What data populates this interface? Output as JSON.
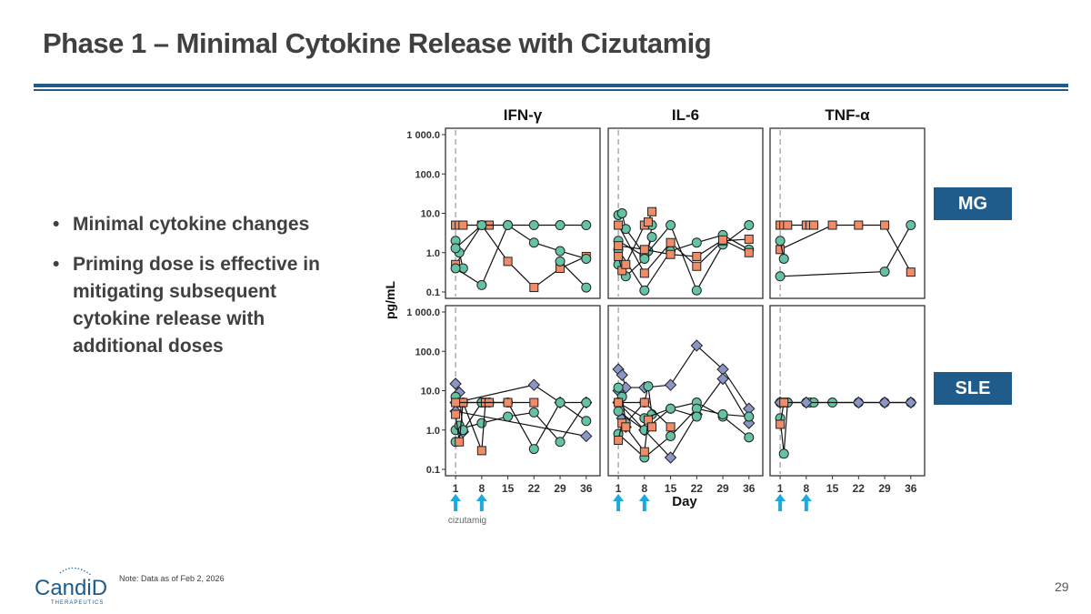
{
  "title": "Phase 1 – Minimal Cytokine Release with Cizutamig",
  "bullets": [
    "Minimal cytokine changes",
    "Priming dose is effective in mitigating subsequent cytokine release with additional doses"
  ],
  "row_tags": [
    "MG",
    "SLE"
  ],
  "note": "Note: Data as of Feb 2, 2026",
  "page_number": "29",
  "logo_text": "CandiD",
  "logo_subtext": "THERAPEUTICS",
  "colors": {
    "accent": "#1f5c8b",
    "arrow": "#1fa8e0",
    "teal": "#66c2a5",
    "orange": "#f08c68",
    "purple": "#8a95c8"
  },
  "chart_data": {
    "type": "line",
    "ylabel": "pg/mL",
    "xlabel": "Day",
    "y_scale": "log10",
    "ylim": [
      0.1,
      1000
    ],
    "y_tick_values": [
      0.1,
      1,
      10,
      100,
      1000
    ],
    "y_tick_labels": [
      "0.1",
      "1.0",
      "10.0",
      "100.0",
      "1 000.0"
    ],
    "x_ticks": [
      1,
      8,
      15,
      22,
      29,
      36
    ],
    "xlim": [
      0,
      38
    ],
    "panel_titles": [
      "IFN-γ",
      "IL-6",
      "TNF-α"
    ],
    "dose_days": [
      1,
      8
    ],
    "dose_label": "cizutamig",
    "panels": [
      {
        "row": "MG",
        "cytokine": "IFN-γ",
        "series": [
          {
            "marker": "square",
            "color": "orange",
            "x": [
              1,
              2,
              3,
              8,
              9,
              10
            ],
            "y": [
              5,
              5,
              5,
              5,
              5,
              5
            ]
          },
          {
            "marker": "square",
            "color": "orange",
            "x": [
              1,
              8,
              15,
              22,
              29,
              36
            ],
            "y": [
              0.5,
              5,
              0.6,
              0.13,
              0.4,
              0.8
            ]
          },
          {
            "marker": "circle",
            "color": "teal",
            "x": [
              1,
              2,
              3
            ],
            "y": [
              2,
              1,
              0.4
            ]
          },
          {
            "marker": "circle",
            "color": "teal",
            "x": [
              1,
              8,
              15,
              22,
              29,
              36
            ],
            "y": [
              1.3,
              5,
              5,
              5,
              5,
              5
            ]
          },
          {
            "marker": "circle",
            "color": "teal",
            "x": [
              1,
              8,
              15,
              22,
              29,
              36
            ],
            "y": [
              0.4,
              0.15,
              5,
              1.8,
              1.1,
              0.7
            ]
          },
          {
            "marker": "circle",
            "color": "teal",
            "x": [
              29,
              36
            ],
            "y": [
              0.6,
              0.13
            ]
          }
        ]
      },
      {
        "row": "MG",
        "cytokine": "IL-6",
        "series": [
          {
            "marker": "circle",
            "color": "teal",
            "x": [
              1,
              2,
              3,
              8,
              9,
              10
            ],
            "y": [
              9,
              10,
              4,
              0.9,
              1.1,
              5
            ]
          },
          {
            "marker": "circle",
            "color": "teal",
            "x": [
              1,
              8,
              15,
              22,
              29,
              36
            ],
            "y": [
              2,
              0.8,
              5,
              0.11,
              1.6,
              5
            ]
          },
          {
            "marker": "circle",
            "color": "teal",
            "x": [
              1,
              8,
              15,
              22,
              29,
              36
            ],
            "y": [
              1.2,
              0.11,
              1.1,
              1.8,
              2.8,
              1.2
            ]
          },
          {
            "marker": "circle",
            "color": "teal",
            "x": [
              1,
              3,
              8,
              10
            ],
            "y": [
              0.5,
              0.25,
              0.7,
              2.5
            ]
          },
          {
            "marker": "square",
            "color": "orange",
            "x": [
              1,
              2,
              3,
              8,
              9,
              10
            ],
            "y": [
              0.8,
              0.35,
              0.5,
              5,
              6,
              11
            ]
          },
          {
            "marker": "square",
            "color": "orange",
            "x": [
              1,
              8,
              15,
              22,
              29,
              36
            ],
            "y": [
              5,
              0.3,
              1.8,
              0.45,
              2,
              2.2
            ]
          },
          {
            "marker": "square",
            "color": "orange",
            "x": [
              1,
              8,
              15,
              22,
              29,
              36
            ],
            "y": [
              1.5,
              1.2,
              0.9,
              0.8,
              2.1,
              1
            ]
          }
        ]
      },
      {
        "row": "MG",
        "cytokine": "TNF-α",
        "series": [
          {
            "marker": "square",
            "color": "orange",
            "x": [
              1,
              2,
              3,
              8,
              9,
              10
            ],
            "y": [
              5,
              5,
              5,
              5,
              5,
              5
            ]
          },
          {
            "marker": "square",
            "color": "orange",
            "x": [
              1,
              15,
              22,
              29,
              36
            ],
            "y": [
              1.2,
              5,
              5,
              5,
              0.32
            ]
          },
          {
            "marker": "circle",
            "color": "teal",
            "x": [
              1,
              2
            ],
            "y": [
              2,
              0.7
            ]
          },
          {
            "marker": "circle",
            "color": "teal",
            "x": [
              1,
              29,
              36
            ],
            "y": [
              0.25,
              0.33,
              5
            ]
          }
        ]
      },
      {
        "row": "SLE",
        "cytokine": "IFN-γ",
        "series": [
          {
            "marker": "diamond",
            "color": "purple",
            "x": [
              1,
              2,
              3
            ],
            "y": [
              15,
              9,
              0.9
            ]
          },
          {
            "marker": "diamond",
            "color": "purple",
            "x": [
              1,
              22,
              29,
              36
            ],
            "y": [
              5,
              14,
              5,
              5
            ]
          },
          {
            "marker": "diamond",
            "color": "purple",
            "x": [
              1,
              36
            ],
            "y": [
              3,
              0.7
            ]
          },
          {
            "marker": "circle",
            "color": "teal",
            "x": [
              1,
              2,
              3,
              8,
              9,
              10
            ],
            "y": [
              7,
              5,
              5,
              5,
              5,
              5
            ]
          },
          {
            "marker": "circle",
            "color": "teal",
            "x": [
              1,
              8,
              15,
              22,
              29,
              36
            ],
            "y": [
              0.5,
              5,
              5,
              0.33,
              5,
              1.7
            ]
          },
          {
            "marker": "circle",
            "color": "teal",
            "x": [
              1,
              8,
              15,
              22,
              29,
              36
            ],
            "y": [
              1,
              1.5,
              2.2,
              2.8,
              0.5,
              5
            ]
          },
          {
            "marker": "circle",
            "color": "teal",
            "x": [
              2,
              3
            ],
            "y": [
              1.3,
              1
            ]
          },
          {
            "marker": "square",
            "color": "orange",
            "x": [
              1,
              2,
              3,
              8,
              9,
              10
            ],
            "y": [
              2.5,
              0.5,
              5,
              0.3,
              5,
              5
            ]
          },
          {
            "marker": "square",
            "color": "orange",
            "x": [
              1,
              15,
              22
            ],
            "y": [
              5,
              5,
              5
            ]
          }
        ]
      },
      {
        "row": "SLE",
        "cytokine": "IL-6",
        "series": [
          {
            "marker": "diamond",
            "color": "purple",
            "x": [
              1,
              2,
              3,
              8,
              15,
              22,
              29,
              36
            ],
            "y": [
              35,
              25,
              12,
              12,
              14,
              140,
              35,
              3.5
            ]
          },
          {
            "marker": "diamond",
            "color": "purple",
            "x": [
              1,
              8,
              15,
              22,
              29,
              36
            ],
            "y": [
              5,
              1,
              0.2,
              2.5,
              20,
              1.5
            ]
          },
          {
            "marker": "diamond",
            "color": "purple",
            "x": [
              1,
              2,
              3
            ],
            "y": [
              10,
              2,
              1.2
            ]
          },
          {
            "marker": "circle",
            "color": "teal",
            "x": [
              1,
              2,
              3,
              8,
              9,
              10
            ],
            "y": [
              12,
              7,
              1.5,
              5,
              13,
              2.5
            ]
          },
          {
            "marker": "circle",
            "color": "teal",
            "x": [
              1,
              8,
              15,
              22,
              29,
              36
            ],
            "y": [
              3,
              1,
              3.5,
              5,
              2.2,
              0.65
            ]
          },
          {
            "marker": "circle",
            "color": "teal",
            "x": [
              1,
              8,
              15,
              22,
              29,
              36
            ],
            "y": [
              0.8,
              0.2,
              0.7,
              3.5,
              2.5,
              2.2
            ]
          },
          {
            "marker": "circle",
            "color": "teal",
            "x": [
              1,
              8,
              15,
              22
            ],
            "y": [
              5,
              2,
              3.5,
              2.2
            ]
          },
          {
            "marker": "square",
            "color": "orange",
            "x": [
              1,
              2,
              3,
              8,
              9,
              10
            ],
            "y": [
              0.55,
              1.5,
              1.2,
              0.28,
              1.8,
              1.2
            ]
          },
          {
            "marker": "square",
            "color": "orange",
            "x": [
              1,
              8,
              15
            ],
            "y": [
              5,
              5,
              1.2
            ]
          }
        ]
      },
      {
        "row": "SLE",
        "cytokine": "TNF-α",
        "series": [
          {
            "marker": "circle",
            "color": "teal",
            "x": [
              1,
              2,
              3,
              8,
              9,
              10,
              15,
              22,
              29,
              36
            ],
            "y": [
              5,
              5,
              5,
              5,
              5,
              5,
              5,
              5,
              5,
              5
            ]
          },
          {
            "marker": "circle",
            "color": "teal",
            "x": [
              1,
              2,
              3
            ],
            "y": [
              2,
              0.25,
              5
            ]
          },
          {
            "marker": "diamond",
            "color": "purple",
            "x": [
              1,
              8,
              22,
              29,
              36
            ],
            "y": [
              5,
              5,
              5,
              5,
              5
            ]
          },
          {
            "marker": "square",
            "color": "orange",
            "x": [
              1,
              2
            ],
            "y": [
              1.4,
              5
            ]
          }
        ]
      }
    ]
  }
}
